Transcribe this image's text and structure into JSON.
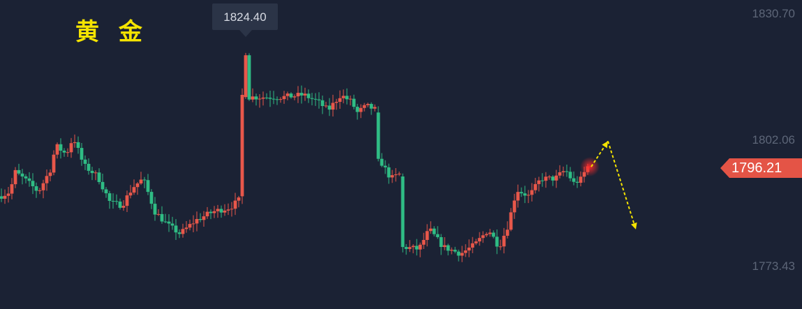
{
  "title": "黄 金",
  "chart_data": {
    "type": "candlestick",
    "instrument": "黄 金",
    "y_axis_labels": [
      "1830.70",
      "1802.06",
      "1773.43"
    ],
    "y_tick_values": [
      1830.7,
      1802.06,
      1773.43
    ],
    "current_price": "1796.21",
    "current_price_value": 1796.21,
    "peak_label": "1824.40",
    "peak_value": 1824.4,
    "colors": {
      "up": "#e8574a",
      "down": "#2fbc84",
      "background": "#1b2234",
      "accent": "#f5e400",
      "price_tag": "#e45446"
    },
    "forecast_arrows": [
      {
        "from": 1796.2,
        "to": 1802.0,
        "direction": "up"
      },
      {
        "from": 1802.0,
        "to": 1782.0,
        "direction": "down"
      }
    ],
    "segments": [
      [
        0,
        1789.5
      ],
      [
        14,
        1790.5
      ],
      [
        22,
        1795.0
      ],
      [
        38,
        1793.0
      ],
      [
        55,
        1790.5
      ],
      [
        72,
        1795.5
      ],
      [
        80,
        1801.0
      ],
      [
        95,
        1799.0
      ],
      [
        105,
        1803.0
      ],
      [
        120,
        1796.5
      ],
      [
        140,
        1794.0
      ],
      [
        158,
        1788.0
      ],
      [
        175,
        1787.5
      ],
      [
        190,
        1791.5
      ],
      [
        205,
        1793.5
      ],
      [
        222,
        1786.0
      ],
      [
        240,
        1783.0
      ],
      [
        258,
        1781.0
      ],
      [
        280,
        1784.0
      ],
      [
        305,
        1786.0
      ],
      [
        330,
        1787.0
      ],
      [
        345,
        1789.0
      ],
      [
        346,
        1812.0
      ],
      [
        351,
        1822.0
      ],
      [
        356,
        1812.0
      ],
      [
        375,
        1812.0
      ],
      [
        405,
        1812.0
      ],
      [
        435,
        1812.5
      ],
      [
        455,
        1811.0
      ],
      [
        470,
        1809.0
      ],
      [
        488,
        1812.5
      ],
      [
        503,
        1811.0
      ],
      [
        512,
        1808.5
      ],
      [
        525,
        1810.0
      ],
      [
        540,
        1809.0
      ],
      [
        545,
        1797.5
      ],
      [
        560,
        1793.5
      ],
      [
        572,
        1794.5
      ],
      [
        578,
        1778.0
      ],
      [
        600,
        1777.5
      ],
      [
        615,
        1782.0
      ],
      [
        635,
        1778.0
      ],
      [
        660,
        1776.5
      ],
      [
        680,
        1778.5
      ],
      [
        700,
        1782.0
      ],
      [
        715,
        1778.0
      ],
      [
        728,
        1783.0
      ],
      [
        740,
        1791.0
      ],
      [
        758,
        1789.5
      ],
      [
        775,
        1793.5
      ],
      [
        795,
        1793.5
      ],
      [
        810,
        1795.5
      ],
      [
        822,
        1792.5
      ],
      [
        834,
        1793.5
      ],
      [
        840,
        1796.2
      ]
    ]
  }
}
